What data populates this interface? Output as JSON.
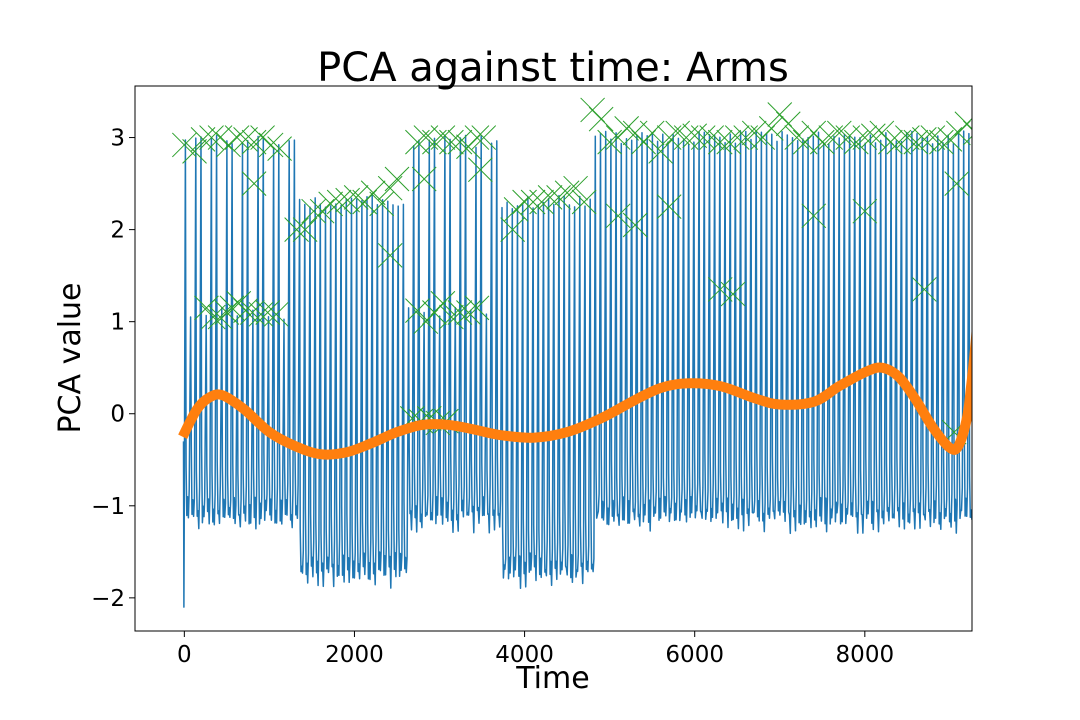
{
  "chart_data": {
    "type": "line",
    "title": "PCA against time: Arms",
    "xlabel": "Time",
    "ylabel": "PCA value",
    "xlim": [
      -580,
      9260
    ],
    "ylim": [
      -2.36,
      3.56
    ],
    "x_ticks": [
      0,
      2000,
      4000,
      6000,
      8000
    ],
    "x_tick_labels": [
      "0",
      "2000",
      "4000",
      "6000",
      "8000"
    ],
    "y_ticks": [
      -2,
      -1,
      0,
      1,
      2,
      3
    ],
    "y_tick_labels": [
      "−2",
      "−1",
      "0",
      "1",
      "2",
      "3"
    ],
    "grid": false,
    "legend": null,
    "colors": {
      "signal": "#1f77b4",
      "trend": "#ff7f0e",
      "peaks": "#2ca02c"
    },
    "series": [
      {
        "kind": "signal_line",
        "peaks_every": 61,
        "segments": [
          {
            "x": [
              -10,
              1300
            ],
            "high": 2.95,
            "low": -1.2
          },
          {
            "x": [
              1300,
              2600
            ],
            "high": 2.3,
            "low": -1.8
          },
          {
            "x": [
              2600,
              3700
            ],
            "high": 2.95,
            "low": -1.2
          },
          {
            "x": [
              3700,
              4800
            ],
            "high": 2.3,
            "low": -1.8
          },
          {
            "x": [
              4800,
              9320
            ],
            "high": 3.0,
            "low": -1.2
          }
        ],
        "mid_levels": [
          {
            "x": [
              -10,
              1300
            ],
            "level": 1.1
          },
          {
            "x": [
              2600,
              3700
            ],
            "level": 1.1
          }
        ],
        "min_value": -2.1,
        "max_value": 3.3
      },
      {
        "kind": "trend_curve",
        "points": [
          [
            -20,
            -0.25
          ],
          [
            150,
            0.05
          ],
          [
            300,
            0.18
          ],
          [
            450,
            0.2
          ],
          [
            700,
            0.05
          ],
          [
            1000,
            -0.2
          ],
          [
            1300,
            -0.35
          ],
          [
            1600,
            -0.44
          ],
          [
            1900,
            -0.42
          ],
          [
            2200,
            -0.32
          ],
          [
            2500,
            -0.2
          ],
          [
            2800,
            -0.12
          ],
          [
            3100,
            -0.12
          ],
          [
            3400,
            -0.17
          ],
          [
            3700,
            -0.23
          ],
          [
            4100,
            -0.26
          ],
          [
            4500,
            -0.2
          ],
          [
            4900,
            -0.05
          ],
          [
            5300,
            0.15
          ],
          [
            5600,
            0.28
          ],
          [
            5900,
            0.33
          ],
          [
            6300,
            0.3
          ],
          [
            6700,
            0.17
          ],
          [
            7000,
            0.1
          ],
          [
            7400,
            0.13
          ],
          [
            7700,
            0.3
          ],
          [
            8000,
            0.45
          ],
          [
            8200,
            0.5
          ],
          [
            8400,
            0.4
          ],
          [
            8600,
            0.15
          ],
          [
            8800,
            -0.15
          ],
          [
            9000,
            -0.37
          ],
          [
            9100,
            -0.35
          ],
          [
            9200,
            -0.05
          ],
          [
            9250,
            0.3
          ],
          [
            9300,
            0.75
          ],
          [
            9320,
            0.98
          ]
        ]
      },
      {
        "kind": "peak_markers",
        "marker": "x",
        "points": [
          [
            0,
            2.92
          ],
          [
            120,
            2.85
          ],
          [
            220,
            2.98
          ],
          [
            320,
            3.0
          ],
          [
            420,
            3.0
          ],
          [
            520,
            2.92
          ],
          [
            620,
            3.0
          ],
          [
            720,
            2.98
          ],
          [
            820,
            2.95
          ],
          [
            920,
            3.0
          ],
          [
            1020,
            2.92
          ],
          [
            1120,
            2.88
          ],
          [
            820,
            2.5
          ],
          [
            260,
            1.15
          ],
          [
            340,
            1.05
          ],
          [
            420,
            1.05
          ],
          [
            500,
            1.1
          ],
          [
            560,
            1.15
          ],
          [
            640,
            1.2
          ],
          [
            720,
            1.12
          ],
          [
            800,
            1.1
          ],
          [
            900,
            1.08
          ],
          [
            980,
            1.1
          ],
          [
            1080,
            1.08
          ],
          [
            1320,
            2.0
          ],
          [
            1420,
            2.0
          ],
          [
            1520,
            2.2
          ],
          [
            1620,
            2.2
          ],
          [
            1720,
            2.28
          ],
          [
            1820,
            2.3
          ],
          [
            1920,
            2.32
          ],
          [
            2020,
            2.35
          ],
          [
            2120,
            2.3
          ],
          [
            2220,
            2.4
          ],
          [
            2320,
            2.28
          ],
          [
            2420,
            2.45
          ],
          [
            2500,
            2.55
          ],
          [
            2420,
            1.72
          ],
          [
            2740,
            2.95
          ],
          [
            2840,
            3.0
          ],
          [
            2940,
            2.95
          ],
          [
            3040,
            3.0
          ],
          [
            3140,
            2.95
          ],
          [
            3240,
            2.95
          ],
          [
            3340,
            2.9
          ],
          [
            3440,
            3.0
          ],
          [
            3520,
            3.0
          ],
          [
            2820,
            2.55
          ],
          [
            2740,
            1.12
          ],
          [
            2840,
            1.0
          ],
          [
            2940,
            1.1
          ],
          [
            3040,
            1.2
          ],
          [
            3140,
            1.05
          ],
          [
            3240,
            1.1
          ],
          [
            3340,
            1.1
          ],
          [
            3440,
            1.15
          ],
          [
            2680,
            -0.05
          ],
          [
            2780,
            -0.08
          ],
          [
            2880,
            -0.05
          ],
          [
            2980,
            -0.1
          ],
          [
            3080,
            -0.08
          ],
          [
            3480,
            2.65
          ],
          [
            3860,
            2.0
          ],
          [
            3900,
            2.22
          ],
          [
            4000,
            2.3
          ],
          [
            4100,
            2.3
          ],
          [
            4200,
            2.3
          ],
          [
            4300,
            2.35
          ],
          [
            4400,
            2.35
          ],
          [
            4500,
            2.4
          ],
          [
            4600,
            2.45
          ],
          [
            4700,
            2.3
          ],
          [
            4800,
            3.3
          ],
          [
            4900,
            3.2
          ],
          [
            5000,
            2.95
          ],
          [
            5100,
            3.0
          ],
          [
            5200,
            3.1
          ],
          [
            5300,
            3.05
          ],
          [
            5400,
            2.95
          ],
          [
            5500,
            3.05
          ],
          [
            5600,
            2.85
          ],
          [
            5700,
            3.0
          ],
          [
            5800,
            3.05
          ],
          [
            5900,
            3.0
          ],
          [
            6000,
            3.02
          ],
          [
            6100,
            3.0
          ],
          [
            6200,
            3.0
          ],
          [
            6300,
            2.95
          ],
          [
            6400,
            2.95
          ],
          [
            6500,
            3.0
          ],
          [
            6600,
            3.0
          ],
          [
            6700,
            3.05
          ],
          [
            6800,
            3.0
          ],
          [
            6900,
            3.1
          ],
          [
            7000,
            3.25
          ],
          [
            7100,
            3.15
          ],
          [
            7200,
            3.0
          ],
          [
            7300,
            2.95
          ],
          [
            7400,
            3.05
          ],
          [
            7500,
            2.95
          ],
          [
            7600,
            3.0
          ],
          [
            7700,
            3.05
          ],
          [
            7800,
            3.0
          ],
          [
            7900,
            2.95
          ],
          [
            8000,
            3.0
          ],
          [
            8100,
            3.02
          ],
          [
            8200,
            3.05
          ],
          [
            8300,
            2.95
          ],
          [
            8400,
            2.95
          ],
          [
            8500,
            3.0
          ],
          [
            8600,
            2.95
          ],
          [
            8700,
            2.98
          ],
          [
            8800,
            3.0
          ],
          [
            8900,
            2.95
          ],
          [
            9000,
            2.98
          ],
          [
            9100,
            3.05
          ],
          [
            9200,
            3.15
          ],
          [
            9300,
            3.05
          ],
          [
            5100,
            2.15
          ],
          [
            5300,
            2.05
          ],
          [
            5700,
            2.25
          ],
          [
            6300,
            1.35
          ],
          [
            6450,
            1.3
          ],
          [
            7400,
            2.15
          ],
          [
            8000,
            2.2
          ],
          [
            8700,
            1.35
          ],
          [
            9080,
            2.5
          ],
          [
            9050,
            -0.2
          ]
        ]
      }
    ]
  }
}
